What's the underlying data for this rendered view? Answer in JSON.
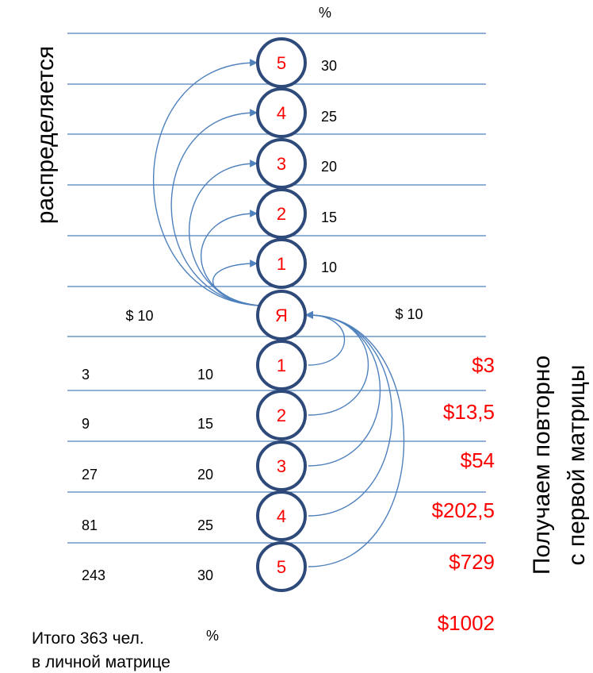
{
  "left_vertical_label": "распределяется",
  "right_vertical_label_line1": "Получаем повторно",
  "right_vertical_label_line2": "с первой матрицы",
  "top_percent_label": "%",
  "bottom_percent_label": "%",
  "center_node_label": "Я",
  "upper_nodes": [
    {
      "label": "5",
      "percent": "30"
    },
    {
      "label": "4",
      "percent": "25"
    },
    {
      "label": "3",
      "percent": "20"
    },
    {
      "label": "2",
      "percent": "15"
    },
    {
      "label": "1",
      "percent": "10"
    }
  ],
  "left_amount": "$ 10",
  "right_amount": "$ 10",
  "lower_nodes": [
    {
      "label": "1",
      "people": "3",
      "percent": "10",
      "income": "$3"
    },
    {
      "label": "2",
      "people": "9",
      "percent": "15",
      "income": "$13,5"
    },
    {
      "label": "3",
      "people": "27",
      "percent": "20",
      "income": "$54"
    },
    {
      "label": "4",
      "people": "81",
      "percent": "25",
      "income": "$202,5"
    },
    {
      "label": "5",
      "people": "243",
      "percent": "30",
      "income": "$729"
    }
  ],
  "total_income": "$1002",
  "total_line1": "Итого 363 чел.",
  "total_line2": "в личной матрице",
  "colors": {
    "line": "#4f81bd",
    "circle_stroke": "#2e4a7a",
    "red_text": "#ff0000"
  }
}
